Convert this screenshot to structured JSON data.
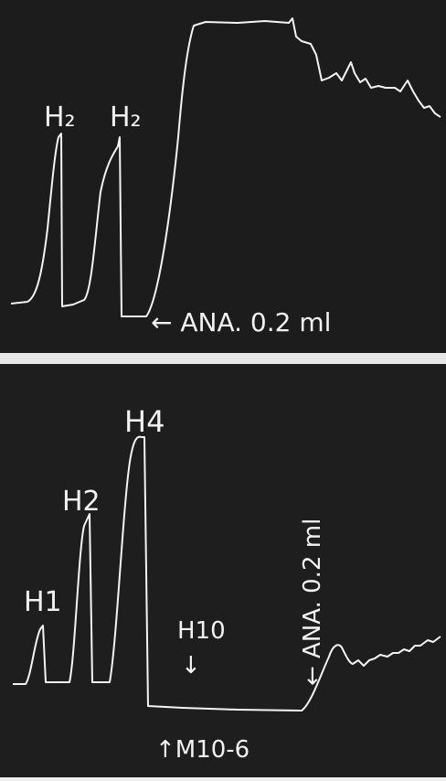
{
  "panels": [
    {
      "labels": [
        "H₂",
        "H₂"
      ],
      "annotation": "← ANA. 0.2 ml"
    },
    {
      "labels": [
        "H1",
        "H2",
        "H4",
        "H10"
      ],
      "marker": "↓",
      "annotation": "← ANA. 0.2 ml",
      "agent": "↑M10-6"
    }
  ]
}
